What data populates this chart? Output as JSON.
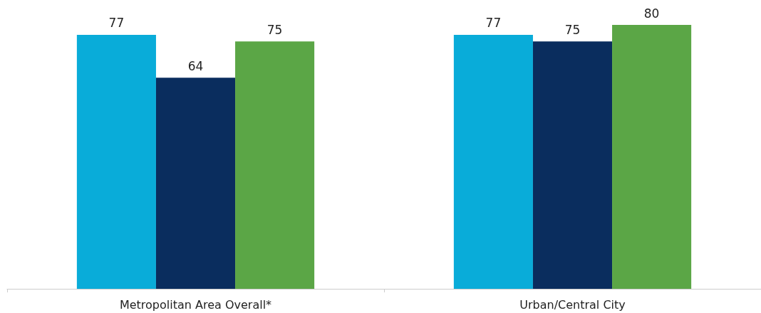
{
  "chart_data": {
    "type": "bar",
    "categories": [
      "Metropolitan Area Overall*",
      "Urban/Central City"
    ],
    "series": [
      {
        "color": "#09acd9",
        "values": [
          77,
          77
        ]
      },
      {
        "color": "#0a2d5e",
        "values": [
          64,
          75
        ]
      },
      {
        "color": "#5ba646",
        "values": [
          75,
          80
        ]
      }
    ],
    "data_labels": true,
    "grid": false,
    "tick_labels": "x"
  }
}
